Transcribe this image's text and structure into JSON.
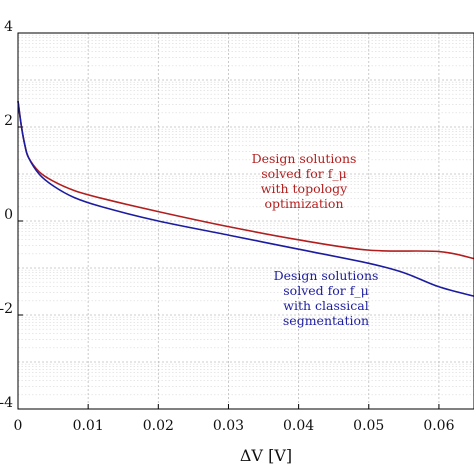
{
  "chart_data": {
    "type": "line",
    "xlabel": "ΔV [V]",
    "ylabel": "",
    "xlim": [
      0,
      0.065
    ],
    "ylim": [
      -4,
      4
    ],
    "yscale": "log",
    "grid": true,
    "minor_grid": true,
    "x_ticks": [
      "0",
      "0.01",
      "0.02",
      "0.03",
      "0.04",
      "0.05",
      "0.06"
    ],
    "x_tick_values": [
      0,
      0.01,
      0.02,
      0.03,
      0.04,
      0.05,
      0.06
    ],
    "y_tick_values": [
      4,
      2,
      0,
      -2,
      -4
    ],
    "y_ticks": [
      "4",
      "2",
      "0",
      "-2",
      "-4"
    ],
    "series": [
      {
        "name": "",
        "color": "#b21e1e",
        "x": [
          0,
          0.0005,
          0.001,
          0.0015,
          0.003,
          0.005,
          0.008,
          0.012,
          0.02,
          0.03,
          0.04,
          0.05,
          0.06,
          0.065
        ],
        "y": [
          2.55,
          2.0,
          1.6,
          1.35,
          1.05,
          0.85,
          0.65,
          0.48,
          0.2,
          -0.12,
          -0.4,
          -0.62,
          -0.65,
          -0.8
        ]
      },
      {
        "name": "",
        "color": "#1c1ca0",
        "x": [
          0,
          0.0005,
          0.001,
          0.0015,
          0.003,
          0.005,
          0.008,
          0.012,
          0.02,
          0.03,
          0.04,
          0.05,
          0.055,
          0.06,
          0.065
        ],
        "y": [
          2.55,
          2.0,
          1.6,
          1.35,
          1.0,
          0.75,
          0.5,
          0.3,
          0.0,
          -0.3,
          -0.6,
          -0.9,
          -1.1,
          -1.4,
          -1.6
        ]
      }
    ],
    "annotations": [
      {
        "color": "#b21e1e",
        "lines": [
          "Design solutions",
          "solved for f_μ",
          "with topology",
          "optimization"
        ]
      },
      {
        "color": "#1c1ca0",
        "lines": [
          "Design solutions",
          "solved for f_μ",
          "with classical",
          "segmentation"
        ]
      }
    ]
  }
}
